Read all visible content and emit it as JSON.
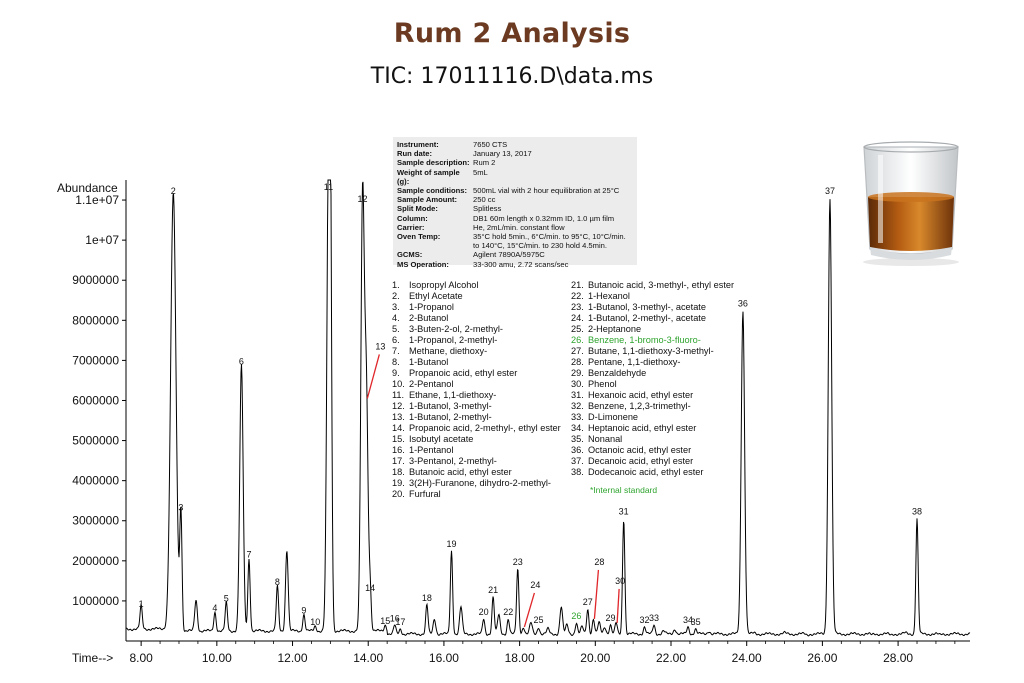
{
  "title": "Rum 2 Analysis",
  "subtitle": "TIC: 17011116.D\\data.ms",
  "meta": [
    {
      "key": "Instrument:",
      "value": "7650 CTS"
    },
    {
      "key": "Run date:",
      "value": "January 13, 2017"
    },
    {
      "key": "Sample description:",
      "value": "Rum 2"
    },
    {
      "key": "Weight of sample (g):",
      "value": "5mL"
    },
    {
      "key": "Sample conditions:",
      "value": "500mL vial with 2 hour equilibration at 25°C"
    },
    {
      "key": "Sample Amount:",
      "value": "250 cc"
    },
    {
      "key": "Split Mode:",
      "value": "Splitless"
    },
    {
      "key": "Column:",
      "value": "DB1 60m length x 0.32mm ID, 1.0 µm film"
    },
    {
      "key": "Carrier:",
      "value": "He, 2mL/min. constant flow"
    },
    {
      "key": "Oven Temp:",
      "value": "35°C hold 5min., 6°C/min. to 95°C, 10°C/min. to 140°C, 15°C/min. to 230 hold 4.5min."
    },
    {
      "key": "GCMS:",
      "value": "Agilent 7890A/5975C"
    },
    {
      "key": "MS Operation:",
      "value": "33-300 amu, 2.72 scans/sec"
    }
  ],
  "compounds_col1": [
    {
      "num": "1.",
      "name": "Isopropyl Alcohol"
    },
    {
      "num": "2.",
      "name": "Ethyl Acetate"
    },
    {
      "num": "3.",
      "name": "1-Propanol"
    },
    {
      "num": "4.",
      "name": "2-Butanol"
    },
    {
      "num": "5.",
      "name": "3-Buten-2-ol, 2-methyl-"
    },
    {
      "num": "6.",
      "name": "1-Propanol, 2-methyl-"
    },
    {
      "num": "7.",
      "name": "Methane, diethoxy-"
    },
    {
      "num": "8.",
      "name": "1-Butanol"
    },
    {
      "num": "9.",
      "name": "Propanoic acid, ethyl ester"
    },
    {
      "num": "10.",
      "name": "2-Pentanol"
    },
    {
      "num": "11.",
      "name": "Ethane, 1,1-diethoxy-"
    },
    {
      "num": "12.",
      "name": "1-Butanol, 3-methyl-"
    },
    {
      "num": "13.",
      "name": "1-Butanol, 2-methyl-"
    },
    {
      "num": "14.",
      "name": "Propanoic acid, 2-methyl-, ethyl ester"
    },
    {
      "num": "15.",
      "name": "Isobutyl acetate"
    },
    {
      "num": "16.",
      "name": "1-Pentanol"
    },
    {
      "num": "17.",
      "name": "3-Pentanol, 2-methyl-"
    },
    {
      "num": "18.",
      "name": "Butanoic acid, ethyl ester"
    },
    {
      "num": "19.",
      "name": "3(2H)-Furanone, dihydro-2-methyl-"
    },
    {
      "num": "20.",
      "name": "Furfural"
    }
  ],
  "compounds_col2": [
    {
      "num": "21.",
      "name": "Butanoic acid, 3-methyl-, ethyl ester",
      "green": false
    },
    {
      "num": "22.",
      "name": "1-Hexanol",
      "green": false
    },
    {
      "num": "23.",
      "name": "1-Butanol, 3-methyl-, acetate",
      "green": false
    },
    {
      "num": "24.",
      "name": "1-Butanol, 2-methyl-, acetate",
      "green": false
    },
    {
      "num": "25.",
      "name": "2-Heptanone",
      "green": false
    },
    {
      "num": "26.",
      "name": "Benzene, 1-bromo-3-fluoro-",
      "green": true
    },
    {
      "num": "27.",
      "name": "Butane, 1,1-diethoxy-3-methyl-",
      "green": false
    },
    {
      "num": "28.",
      "name": "Pentane, 1,1-diethoxy-",
      "green": false
    },
    {
      "num": "29.",
      "name": "Benzaldehyde",
      "green": false
    },
    {
      "num": "30.",
      "name": "Phenol",
      "green": false
    },
    {
      "num": "31.",
      "name": "Hexanoic acid, ethyl ester",
      "green": false
    },
    {
      "num": "32.",
      "name": "Benzene, 1,2,3-trimethyl-",
      "green": false
    },
    {
      "num": "33.",
      "name": "D-Limonene",
      "green": false
    },
    {
      "num": "34.",
      "name": "Heptanoic acid, ethyl ester",
      "green": false
    },
    {
      "num": "35.",
      "name": "Nonanal",
      "green": false
    },
    {
      "num": "36.",
      "name": "Octanoic acid, ethyl ester",
      "green": false
    },
    {
      "num": "37.",
      "name": "Decanoic acid, ethyl ester",
      "green": false
    },
    {
      "num": "38.",
      "name": "Dodecanoic acid, ethyl ester",
      "green": false
    }
  ],
  "internal_standard_note": "*Internal standard",
  "colors": {
    "title": "#6b3a21",
    "internal_standard": "#2ea42e",
    "pointer": "#e0262a",
    "trace": "#000000"
  },
  "icons": {
    "glass": "whiskey-glass-image"
  },
  "chart_data": {
    "type": "line",
    "ylabel": "Abundance",
    "xlabel": "Time-->",
    "xlim": [
      7.6,
      29.9
    ],
    "ylim": [
      0,
      11500000
    ],
    "x_ticks": [
      "8.00",
      "10.00",
      "12.00",
      "14.00",
      "16.00",
      "18.00",
      "20.00",
      "22.00",
      "24.00",
      "26.00",
      "28.00"
    ],
    "x_tick_values": [
      8,
      10,
      12,
      14,
      16,
      18,
      20,
      22,
      24,
      26,
      28
    ],
    "y_ticks": [
      "1000000",
      "2000000",
      "3000000",
      "4000000",
      "5000000",
      "6000000",
      "7000000",
      "8000000",
      "9000000",
      "1e+07",
      "1.1e+07"
    ],
    "y_tick_values": [
      1000000,
      2000000,
      3000000,
      4000000,
      5000000,
      6000000,
      7000000,
      8000000,
      9000000,
      10000000,
      11000000
    ],
    "baseline": 250000,
    "peaks": [
      {
        "label": "1",
        "rt": 8.0,
        "height": 700000
      },
      {
        "label": "2",
        "rt": 8.85,
        "height": 11000000
      },
      {
        "label": "3",
        "rt": 9.05,
        "height": 3100000
      },
      {
        "label": "4",
        "rt": 9.95,
        "height": 600000
      },
      {
        "label": "5",
        "rt": 10.25,
        "height": 830000
      },
      {
        "label": "6",
        "rt": 10.65,
        "height": 6750000
      },
      {
        "label": "7",
        "rt": 10.85,
        "height": 1930000
      },
      {
        "label": "8",
        "rt": 11.6,
        "height": 1250000
      },
      {
        "label": "9",
        "rt": 12.3,
        "height": 540000
      },
      {
        "label": "10",
        "rt": 12.6,
        "height": 250000
      },
      {
        "label": "11",
        "rt": 12.95,
        "height": 11100000
      },
      {
        "label": "12",
        "rt": 13.85,
        "height": 10800000
      },
      {
        "label": "13",
        "rt": 13.95,
        "height": 6000000
      },
      {
        "label": "14",
        "rt": 14.05,
        "height": 1100000
      },
      {
        "label": "15",
        "rt": 14.45,
        "height": 280000
      },
      {
        "label": "16",
        "rt": 14.7,
        "height": 340000
      },
      {
        "label": "17",
        "rt": 14.85,
        "height": 250000
      },
      {
        "label": "18",
        "rt": 15.55,
        "height": 850000
      },
      {
        "label": "19",
        "rt": 16.2,
        "height": 2200000
      },
      {
        "label": "20",
        "rt": 17.05,
        "height": 500000
      },
      {
        "label": "21",
        "rt": 17.3,
        "height": 1050000
      },
      {
        "label": "22",
        "rt": 17.7,
        "height": 500000
      },
      {
        "label": "23",
        "rt": 17.95,
        "height": 1750000
      },
      {
        "label": "24",
        "rt": 18.1,
        "height": 300000
      },
      {
        "label": "25",
        "rt": 18.5,
        "height": 300000
      },
      {
        "label": "26",
        "rt": 19.5,
        "height": 400000
      },
      {
        "label": "27",
        "rt": 19.8,
        "height": 750000
      },
      {
        "label": "28",
        "rt": 19.95,
        "height": 500000
      },
      {
        "label": "29",
        "rt": 20.4,
        "height": 350000
      },
      {
        "label": "30",
        "rt": 20.55,
        "height": 400000
      },
      {
        "label": "31",
        "rt": 20.75,
        "height": 3000000
      },
      {
        "label": "32",
        "rt": 21.3,
        "height": 300000
      },
      {
        "label": "33",
        "rt": 21.55,
        "height": 350000
      },
      {
        "label": "34",
        "rt": 22.45,
        "height": 300000
      },
      {
        "label": "35",
        "rt": 22.65,
        "height": 250000
      },
      {
        "label": "36",
        "rt": 23.9,
        "height": 8200000
      },
      {
        "label": "37",
        "rt": 26.2,
        "height": 11000000
      },
      {
        "label": "38",
        "rt": 28.5,
        "height": 3000000
      }
    ],
    "minor_peaks": [
      {
        "rt": 9.45,
        "height": 900000
      },
      {
        "rt": 11.85,
        "height": 2150000
      },
      {
        "rt": 13.0,
        "height": 8200000
      },
      {
        "rt": 15.75,
        "height": 500000
      },
      {
        "rt": 16.45,
        "height": 800000
      },
      {
        "rt": 17.45,
        "height": 600000
      },
      {
        "rt": 18.3,
        "height": 400000
      },
      {
        "rt": 18.75,
        "height": 250000
      },
      {
        "rt": 19.1,
        "height": 800000
      },
      {
        "rt": 19.25,
        "height": 350000
      },
      {
        "rt": 19.65,
        "height": 300000
      },
      {
        "rt": 20.1,
        "height": 400000
      },
      {
        "rt": 20.25,
        "height": 300000
      },
      {
        "rt": 21.8,
        "height": 200000
      },
      {
        "rt": 22.1,
        "height": 250000
      },
      {
        "rt": 23.0,
        "height": 200000
      },
      {
        "rt": 24.2,
        "height": 150000
      },
      {
        "rt": 24.6,
        "height": 120000
      },
      {
        "rt": 25.0,
        "height": 150000
      },
      {
        "rt": 25.6,
        "height": 100000
      },
      {
        "rt": 26.7,
        "height": 120000
      },
      {
        "rt": 27.3,
        "height": 100000
      },
      {
        "rt": 27.8,
        "height": 100000
      },
      {
        "rt": 28.2,
        "height": 150000
      },
      {
        "rt": 29.1,
        "height": 100000
      }
    ],
    "green_labels": [
      "26"
    ],
    "pointer_labels": [
      "13",
      "24",
      "28",
      "30"
    ]
  }
}
